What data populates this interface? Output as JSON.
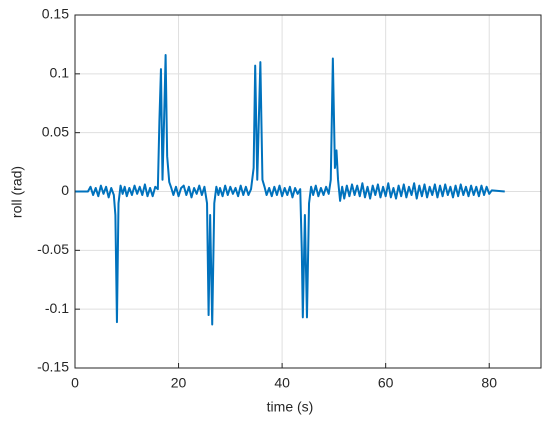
{
  "chart_data": {
    "type": "line",
    "xlabel": "time (s)",
    "ylabel": "roll (rad)",
    "x": [
      0,
      2.5,
      3,
      3.5,
      4,
      4.5,
      5,
      5.5,
      6,
      6.5,
      7,
      7.5,
      7.8,
      8.1,
      8.4,
      8.8,
      9.2,
      9.6,
      10,
      10.5,
      11,
      11.5,
      12,
      12.5,
      13,
      13.5,
      14,
      14.5,
      15,
      15.5,
      16,
      16.3,
      16.6,
      16.9,
      17.2,
      17.5,
      17.8,
      18.2,
      18.6,
      19,
      19.5,
      20,
      20.5,
      21,
      21.5,
      22,
      22.5,
      23,
      23.5,
      24,
      24.5,
      25,
      25.5,
      25.8,
      26.1,
      26.5,
      26.9,
      27.3,
      27.7,
      28,
      28.5,
      29,
      29.5,
      30,
      30.5,
      31,
      31.5,
      32,
      32.5,
      33,
      33.5,
      34,
      34.5,
      34.8,
      35.2,
      35.8,
      36.2,
      36.6,
      37,
      37.5,
      38,
      38.5,
      39,
      39.5,
      40,
      40.5,
      41,
      41.5,
      42,
      42.5,
      43,
      43.5,
      43.8,
      44,
      44.4,
      44.8,
      45.2,
      45.6,
      46,
      46.5,
      47,
      47.5,
      48,
      48.5,
      49,
      49.4,
      49.8,
      50.2,
      50.5,
      50.8,
      51.2,
      51.6,
      52,
      52.5,
      53,
      53.5,
      54,
      54.5,
      55,
      55.5,
      56,
      56.5,
      57,
      57.5,
      58,
      58.5,
      59,
      59.5,
      60,
      60.5,
      61,
      61.5,
      62,
      62.5,
      63,
      63.5,
      64,
      64.5,
      65,
      65.5,
      66,
      66.5,
      67,
      67.5,
      68,
      68.5,
      69,
      69.5,
      70,
      70.5,
      71,
      71.5,
      72,
      72.5,
      73,
      73.5,
      74,
      74.5,
      75,
      75.5,
      76,
      76.5,
      77,
      77.5,
      78,
      78.5,
      79,
      79.5,
      80,
      80.5,
      83
    ],
    "series": [
      {
        "color": "#0072bd",
        "values": [
          0,
          0,
          0.004,
          -0.003,
          0.003,
          -0.004,
          0.005,
          -0.002,
          0.004,
          -0.005,
          0.003,
          -0.003,
          -0.02,
          -0.111,
          -0.01,
          0.005,
          -0.002,
          0.004,
          -0.004,
          0.003,
          -0.003,
          0.005,
          -0.002,
          0.004,
          -0.003,
          0.006,
          -0.004,
          0.003,
          -0.004,
          0.004,
          0.002,
          0.06,
          0.104,
          0.01,
          0.06,
          0.116,
          0.03,
          0.008,
          0.003,
          -0.003,
          0.004,
          -0.004,
          0.003,
          0.005,
          -0.003,
          0.004,
          -0.005,
          0.003,
          -0.002,
          0.005,
          -0.003,
          0.004,
          -0.01,
          -0.105,
          -0.02,
          -0.113,
          -0.01,
          0.004,
          -0.003,
          0.003,
          -0.004,
          0.005,
          -0.003,
          0.004,
          -0.002,
          0.003,
          -0.004,
          0.005,
          -0.003,
          0.004,
          -0.003,
          0.002,
          0.02,
          0.107,
          0.01,
          0.11,
          0.01,
          0.004,
          -0.003,
          0.003,
          -0.004,
          0.004,
          -0.003,
          0.005,
          -0.004,
          0.003,
          -0.003,
          0.004,
          -0.005,
          0.003,
          -0.002,
          0.002,
          -0.05,
          -0.107,
          -0.02,
          -0.107,
          -0.01,
          0.004,
          -0.003,
          0.005,
          -0.004,
          0.003,
          -0.003,
          0.004,
          -0.002,
          0.01,
          0.113,
          0.02,
          0.035,
          0.01,
          -0.008,
          0.004,
          -0.006,
          0.005,
          -0.004,
          0.006,
          -0.003,
          0.005,
          -0.004,
          0.007,
          -0.005,
          0.004,
          -0.006,
          0.005,
          -0.003,
          0.006,
          -0.005,
          0.004,
          -0.004,
          0.007,
          -0.005,
          0.003,
          -0.006,
          0.005,
          -0.004,
          0.006,
          -0.005,
          0.004,
          -0.003,
          0.007,
          -0.006,
          0.005,
          -0.004,
          0.006,
          -0.005,
          0.004,
          -0.003,
          0.006,
          -0.005,
          0.005,
          -0.004,
          0.006,
          -0.003,
          0.004,
          -0.005,
          0.005,
          -0.004,
          0.006,
          -0.003,
          0.004,
          -0.004,
          0.005,
          -0.003,
          0.004,
          -0.004,
          0.005,
          -0.003,
          0.004,
          -0.002,
          0.001,
          0
        ]
      }
    ],
    "xlim": [
      0,
      90
    ],
    "xticks": [
      0,
      20,
      40,
      60,
      80
    ],
    "ylim": [
      -0.15,
      0.15
    ],
    "yticks": [
      -0.15,
      -0.1,
      -0.05,
      0,
      0.05,
      0.1,
      0.15
    ],
    "grid": true
  }
}
